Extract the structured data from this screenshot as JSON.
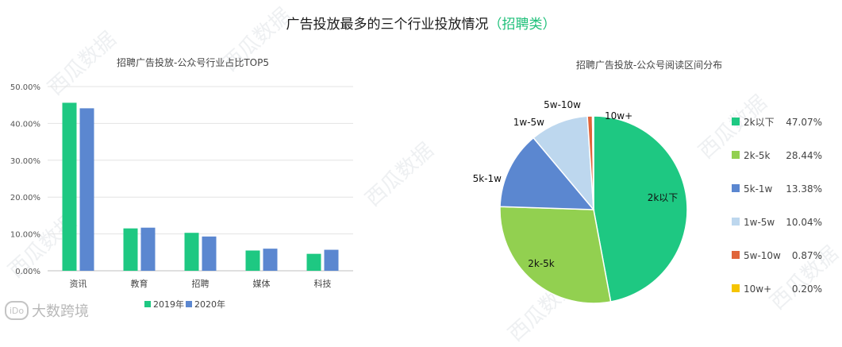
{
  "title": {
    "main": "广告投放最多的三个行业投放情况",
    "highlight": "（招聘类）"
  },
  "watermarks": [
    "西瓜数据",
    "西瓜数据",
    "西瓜数据",
    "西瓜数据",
    "西瓜数据",
    "西瓜数据",
    "西瓜数据",
    "西瓜数据"
  ],
  "logo": {
    "mark": "iDo",
    "text": "大数跨境"
  },
  "colors": {
    "s2019": "#1ec882",
    "s2020": "#5b87d0"
  },
  "chart_data": [
    {
      "type": "bar",
      "title": "招聘广告投放-公众号行业占比TOP5",
      "categories": [
        "资讯",
        "教育",
        "招聘",
        "媒体",
        "科技"
      ],
      "series": [
        {
          "name": "2019年",
          "values": [
            45.6,
            11.5,
            10.3,
            5.5,
            4.6
          ]
        },
        {
          "name": "2020年",
          "values": [
            44.1,
            11.7,
            9.3,
            6.0,
            5.7
          ]
        }
      ],
      "yticks": [
        "0.00%",
        "10.00%",
        "20.00%",
        "30.00%",
        "40.00%",
        "50.00%"
      ],
      "ylim": [
        0,
        50
      ],
      "grid": true,
      "legend": "bottom"
    },
    {
      "type": "pie",
      "title": "招聘广告投放-公众号阅读区间分布",
      "slices": [
        {
          "label": "2k以下",
          "value": 47.07,
          "pct": "47.07%",
          "color": "#1ec882"
        },
        {
          "label": "2k-5k",
          "value": 28.44,
          "pct": "28.44%",
          "color": "#92d050"
        },
        {
          "label": "5k-1w",
          "value": 13.38,
          "pct": "13.38%",
          "color": "#5b87d0"
        },
        {
          "label": "1w-5w",
          "value": 10.04,
          "pct": "10.04%",
          "color": "#bdd7ee"
        },
        {
          "label": "5w-10w",
          "value": 0.87,
          "pct": "0.87%",
          "color": "#e0653a"
        },
        {
          "label": "10w+",
          "value": 0.2,
          "pct": "0.20%",
          "color": "#f5c400"
        }
      ],
      "legend": "right"
    }
  ]
}
